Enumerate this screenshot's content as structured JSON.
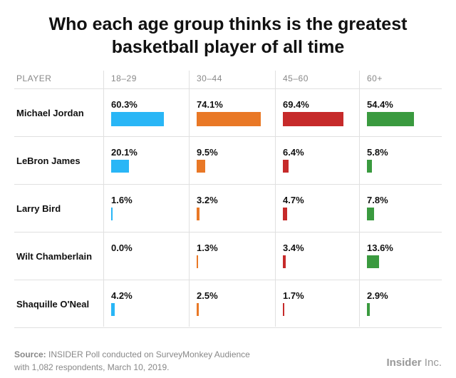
{
  "title": {
    "line1": "Who each age group thinks is the greatest",
    "line2": "basketball player of all time"
  },
  "chart_data": {
    "type": "table",
    "row_header": "PLAYER",
    "categories": [
      "18–29",
      "30–44",
      "45–60",
      "60+"
    ],
    "colors": [
      "#29b6f6",
      "#e97826",
      "#c62a2a",
      "#3a9a3f"
    ],
    "rows": [
      {
        "player": "Michael Jordan",
        "values": [
          60.3,
          74.1,
          69.4,
          54.4
        ],
        "labels": [
          "60.3%",
          "74.1%",
          "69.4%",
          "54.4%"
        ]
      },
      {
        "player": "LeBron James",
        "values": [
          20.1,
          9.5,
          6.4,
          5.8
        ],
        "labels": [
          "20.1%",
          "9.5%",
          "6.4%",
          "5.8%"
        ]
      },
      {
        "player": "Larry Bird",
        "values": [
          1.6,
          3.2,
          4.7,
          7.8
        ],
        "labels": [
          "1.6%",
          "3.2%",
          "4.7%",
          "7.8%"
        ]
      },
      {
        "player": "Wilt Chamberlain",
        "values": [
          0.0,
          1.3,
          3.4,
          13.6
        ],
        "labels": [
          "0.0%",
          "1.3%",
          "3.4%",
          "13.6%"
        ]
      },
      {
        "player": "Shaquille O'Neal",
        "values": [
          4.2,
          2.5,
          1.7,
          2.9
        ],
        "labels": [
          "4.2%",
          "2.5%",
          "1.7%",
          "2.9%"
        ]
      }
    ]
  },
  "source": {
    "label": "Source:",
    "text": " INSIDER Poll conducted on SurveyMonkey Audience",
    "line2": "with 1,082 respondents, March 10, 2019."
  },
  "logo": {
    "brand": "Insider",
    "suffix": " Inc."
  }
}
